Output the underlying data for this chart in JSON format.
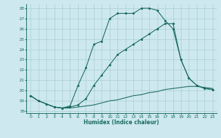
{
  "xlabel": "Humidex (Indice chaleur)",
  "bg_color": "#cde8ee",
  "grid_color": "#aaccd4",
  "line_color": "#1a6b60",
  "xlim": [
    -0.5,
    23.5
  ],
  "ylim": [
    17.8,
    28.4
  ],
  "xticks": [
    0,
    1,
    2,
    3,
    4,
    5,
    6,
    7,
    8,
    9,
    10,
    11,
    12,
    13,
    14,
    15,
    16,
    17,
    18,
    19,
    20,
    21,
    22,
    23
  ],
  "yticks": [
    18,
    19,
    20,
    21,
    22,
    23,
    24,
    25,
    26,
    27,
    28
  ],
  "line_bottom_x": [
    0,
    1,
    2,
    3,
    4,
    5,
    6,
    7,
    8,
    9,
    10,
    11,
    12,
    13,
    14,
    15,
    16,
    17,
    18,
    19,
    20,
    21,
    22,
    23
  ],
  "line_bottom_y": [
    19.5,
    19.0,
    18.7,
    18.4,
    18.3,
    18.3,
    18.4,
    18.5,
    18.6,
    18.8,
    19.0,
    19.1,
    19.3,
    19.5,
    19.6,
    19.8,
    19.9,
    20.1,
    20.2,
    20.3,
    20.4,
    20.4,
    20.3,
    20.2
  ],
  "line_mid_x": [
    0,
    1,
    2,
    3,
    4,
    5,
    6,
    7,
    8,
    9,
    10,
    11,
    12,
    13,
    14,
    15,
    16,
    17,
    18,
    19,
    20,
    21,
    22,
    23
  ],
  "line_mid_y": [
    19.5,
    19.0,
    18.7,
    18.4,
    18.3,
    18.4,
    18.6,
    19.2,
    20.5,
    21.5,
    22.5,
    23.5,
    24.0,
    24.5,
    25.0,
    25.5,
    26.0,
    26.5,
    26.5,
    23.0,
    21.2,
    20.5,
    20.2,
    20.1
  ],
  "line_top_x": [
    0,
    1,
    2,
    3,
    4,
    5,
    6,
    7,
    8,
    9,
    10,
    11,
    12,
    13,
    14,
    15,
    16,
    17,
    18,
    19,
    20,
    21,
    22,
    23
  ],
  "line_top_y": [
    19.5,
    19.0,
    18.7,
    18.4,
    18.3,
    18.5,
    20.5,
    22.2,
    24.5,
    24.8,
    27.0,
    27.5,
    27.5,
    27.5,
    28.0,
    28.0,
    27.8,
    26.8,
    26.0,
    23.0,
    21.2,
    20.5,
    20.2,
    20.1
  ]
}
